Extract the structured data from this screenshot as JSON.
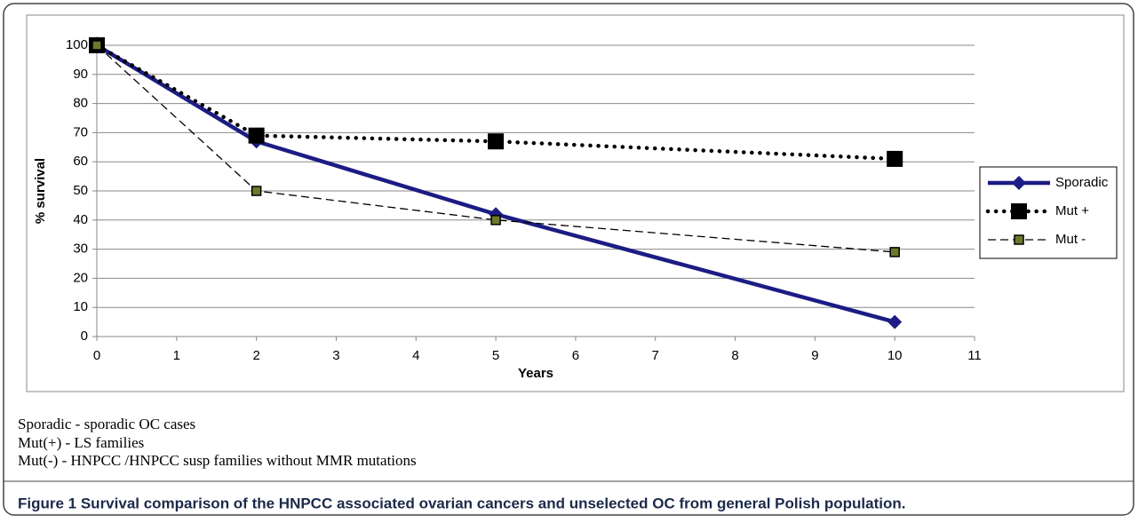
{
  "chart_data": {
    "type": "line",
    "x": [
      0,
      2,
      5,
      10
    ],
    "xlim": [
      0,
      11
    ],
    "xticks": [
      0,
      1,
      2,
      3,
      4,
      5,
      6,
      7,
      8,
      9,
      10,
      11
    ],
    "ylim": [
      0,
      100
    ],
    "yticks": [
      0,
      10,
      20,
      30,
      40,
      50,
      60,
      70,
      80,
      90,
      100
    ],
    "xlabel": "Years",
    "ylabel": "% survival",
    "grid": true,
    "legend": "right",
    "series": [
      {
        "name": "Sporadic",
        "color": "#1c1c84",
        "marker": "diamond",
        "dash": "solid",
        "values": [
          100,
          67,
          42,
          5
        ]
      },
      {
        "name": "Mut +",
        "color": "#000000",
        "marker": "square",
        "dash": "dotted",
        "values": [
          100,
          69,
          67,
          61
        ]
      },
      {
        "name": "Mut -",
        "color": "#000000",
        "marker": "small-square",
        "dash": "dashed",
        "values": [
          100,
          50,
          40,
          29
        ]
      }
    ]
  },
  "notes": [
    "Sporadic - sporadic OC cases",
    "Mut(+) - LS families",
    "Mut(-) - HNPCC /HNPCC susp families without MMR mutations"
  ],
  "caption": "Figure 1 Survival comparison of the HNPCC associated ovarian cancers and unselected OC from general Polish population."
}
